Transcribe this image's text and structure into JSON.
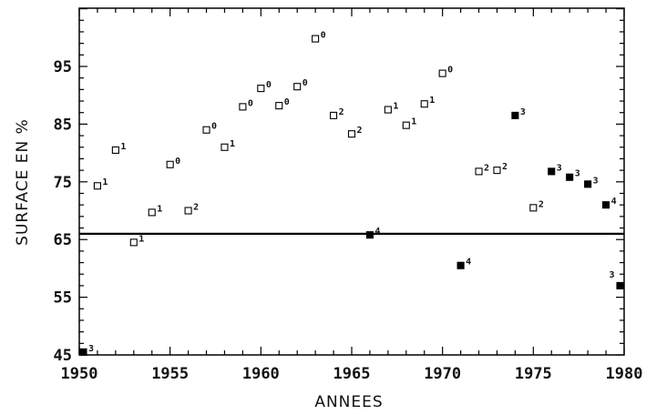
{
  "chart_data": {
    "type": "scatter",
    "xlabel": "ANNEES",
    "ylabel": "SURFACE EN %",
    "xlim": [
      1950,
      1980
    ],
    "ylim": [
      45,
      105
    ],
    "x_ticks": [
      "1950",
      "1955",
      "1960",
      "1965",
      "1970",
      "1975",
      "1980"
    ],
    "y_ticks": [
      "45",
      "55",
      "65",
      "75",
      "85",
      "95"
    ],
    "reference_line": 66,
    "series": [
      {
        "marker": "open-square",
        "points": [
          {
            "x": 1951,
            "y": 74.3,
            "label": "1"
          },
          {
            "x": 1952,
            "y": 80.5,
            "label": "1"
          },
          {
            "x": 1953,
            "y": 64.5,
            "label": "1"
          },
          {
            "x": 1954,
            "y": 69.7,
            "label": "1"
          },
          {
            "x": 1955,
            "y": 78.0,
            "label": "0"
          },
          {
            "x": 1956,
            "y": 70.0,
            "label": "2"
          },
          {
            "x": 1957,
            "y": 84.0,
            "label": "0"
          },
          {
            "x": 1958,
            "y": 81.0,
            "label": "1"
          },
          {
            "x": 1959,
            "y": 88.0,
            "label": "0"
          },
          {
            "x": 1960,
            "y": 91.2,
            "label": "0"
          },
          {
            "x": 1961,
            "y": 88.2,
            "label": "0"
          },
          {
            "x": 1962,
            "y": 91.5,
            "label": "0"
          },
          {
            "x": 1963,
            "y": 99.8,
            "label": "0"
          },
          {
            "x": 1964,
            "y": 86.5,
            "label": "2"
          },
          {
            "x": 1965,
            "y": 83.3,
            "label": "2"
          },
          {
            "x": 1967,
            "y": 87.5,
            "label": "1"
          },
          {
            "x": 1968,
            "y": 84.8,
            "label": "1"
          },
          {
            "x": 1969,
            "y": 88.5,
            "label": "1"
          },
          {
            "x": 1970,
            "y": 93.8,
            "label": "0"
          },
          {
            "x": 1972,
            "y": 76.8,
            "label": "2"
          },
          {
            "x": 1973,
            "y": 77.0,
            "label": "2"
          },
          {
            "x": 1975,
            "y": 70.5,
            "label": "2"
          }
        ]
      },
      {
        "marker": "filled-square",
        "points": [
          {
            "x": 1950,
            "y": 45.5,
            "label": "3"
          },
          {
            "x": 1966,
            "y": 65.8,
            "label": "4"
          },
          {
            "x": 1971,
            "y": 60.5,
            "label": "4"
          },
          {
            "x": 1974,
            "y": 86.5,
            "label": "3"
          },
          {
            "x": 1976,
            "y": 76.8,
            "label": "3"
          },
          {
            "x": 1977,
            "y": 75.8,
            "label": "3"
          },
          {
            "x": 1978,
            "y": 74.6,
            "label": "3"
          },
          {
            "x": 1979,
            "y": 71.0,
            "label": "4"
          },
          {
            "x": 1980,
            "y": 57.0,
            "label": "3"
          }
        ]
      }
    ]
  }
}
